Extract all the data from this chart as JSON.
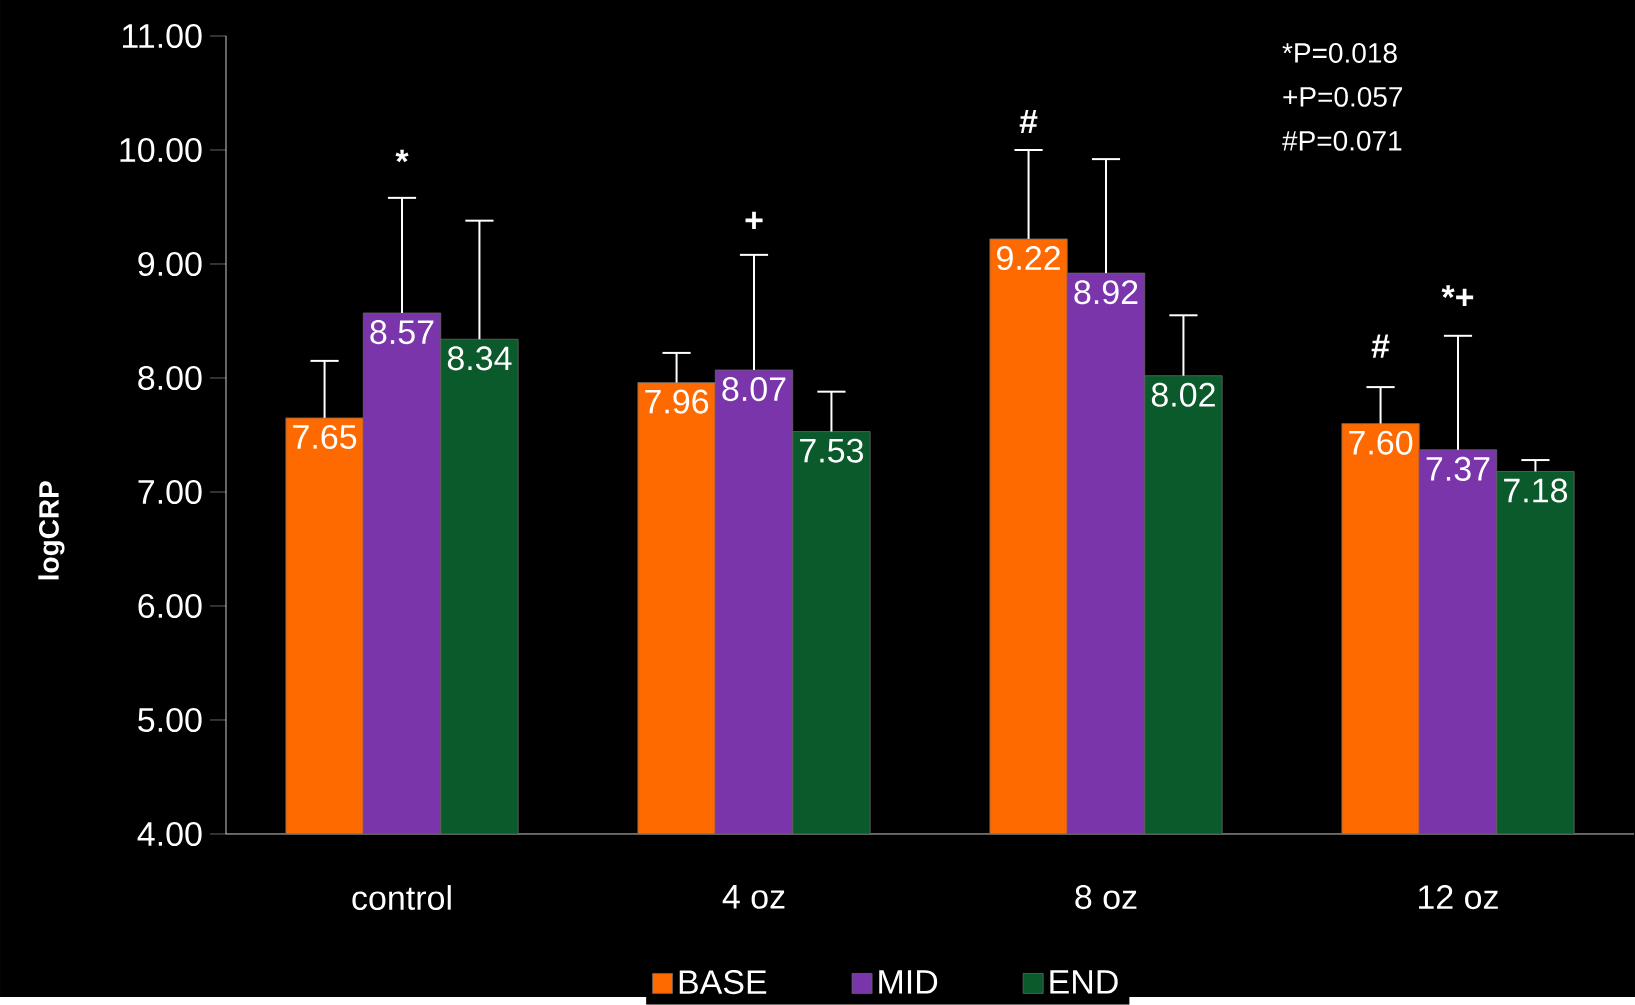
{
  "chart_data": {
    "type": "bar",
    "ylabel": "logCRP",
    "categories": [
      "control",
      "4 oz",
      "8 oz",
      "12 oz"
    ],
    "series": [
      {
        "name": "BASE",
        "color": "#ff6a00",
        "values": [
          7.65,
          7.96,
          9.22,
          7.6
        ],
        "value_labels": [
          "7.65",
          "7.96",
          "9.22",
          "7.60"
        ],
        "errors": [
          [
            7.65,
            8.15
          ],
          [
            7.96,
            8.22
          ],
          [
            9.22,
            10.0
          ],
          [
            7.6,
            7.92
          ]
        ]
      },
      {
        "name": "MID",
        "color": "#7b35aa",
        "values": [
          8.57,
          8.07,
          8.92,
          7.37
        ],
        "value_labels": [
          "8.57",
          "8.07",
          "8.92",
          "7.37"
        ],
        "errors": [
          [
            8.57,
            9.58
          ],
          [
            8.07,
            9.08
          ],
          [
            8.92,
            9.92
          ],
          [
            7.37,
            8.37
          ]
        ]
      },
      {
        "name": "END",
        "color": "#0b5a2c",
        "values": [
          8.34,
          7.53,
          8.02,
          7.18
        ],
        "value_labels": [
          "8.34",
          "7.53",
          "8.02",
          "7.18"
        ],
        "errors": [
          [
            8.34,
            9.38
          ],
          [
            7.53,
            7.88
          ],
          [
            8.02,
            8.55
          ],
          [
            7.18,
            7.28
          ]
        ]
      }
    ],
    "ylim": [
      4,
      11
    ],
    "yticks": [
      {
        "value": 4,
        "label": "4.00"
      },
      {
        "value": 5,
        "label": "5.00"
      },
      {
        "value": 6,
        "label": "6.00"
      },
      {
        "value": 7,
        "label": "7.00"
      },
      {
        "value": 8,
        "label": "8.00"
      },
      {
        "value": 9,
        "label": "9.00"
      },
      {
        "value": 10,
        "label": "10.00"
      },
      {
        "value": 11,
        "label": "11.00"
      }
    ],
    "grid": false,
    "legend": "bottom",
    "annotations": [
      "*",
      "+",
      "#",
      "#",
      "*+",
      "*P=0.018",
      "+P=0.057",
      "#P=0.071"
    ]
  }
}
